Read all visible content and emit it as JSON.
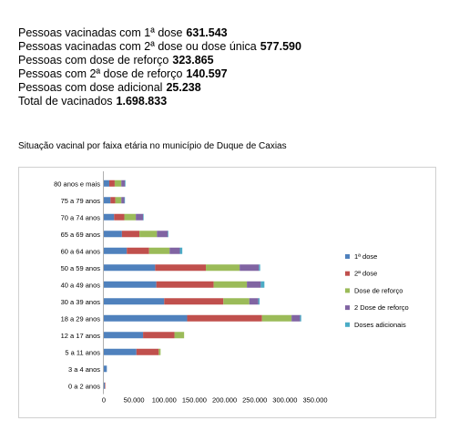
{
  "stats": [
    {
      "label": "Pessoas vacinadas com 1ª dose",
      "value": "631.543"
    },
    {
      "label": "Pessoas vacinadas com 2ª dose ou dose única",
      "value": "577.590"
    },
    {
      "label": "Pessoas com dose de reforço",
      "value": "323.865"
    },
    {
      "label": "Pessoas com 2ª dose de reforço",
      "value": "140.597"
    },
    {
      "label": " Pessoas com dose adicional",
      "value": "25.238"
    },
    {
      "label": "Total de vacinados",
      "value": "1.698.833"
    }
  ],
  "chart_data": {
    "type": "bar",
    "orientation": "horizontal",
    "stacked": true,
    "title": "Situação vacinal por faixa etária no município de Duque de Caxias",
    "categories": [
      "80 anos e mais",
      "75 a 79 anos",
      "70 a 74 anos",
      "65 a 69 anos",
      "60 a 64 anos",
      "50 a 59 anos",
      "40 a 49 anos",
      "30 a 39 anos",
      "18 a 29 anos",
      "12 a 17 anos",
      "5 a 11 anos",
      "3 a 4 anos",
      "0 a 2 anos"
    ],
    "series": [
      {
        "name": "1ª dose",
        "color": "#4F81BD",
        "values": [
          9000,
          11000,
          17000,
          30000,
          38000,
          85000,
          87000,
          100000,
          138000,
          65000,
          54000,
          5000,
          1500
        ]
      },
      {
        "name": "2ª dose",
        "color": "#C0504D",
        "values": [
          9000,
          8000,
          17000,
          29000,
          37000,
          84000,
          95000,
          98000,
          124000,
          52000,
          37000,
          0,
          500
        ]
      },
      {
        "name": "Dose de reforço",
        "color": "#9BBB59",
        "values": [
          11000,
          10000,
          19000,
          29000,
          34000,
          56000,
          55000,
          43000,
          49000,
          16000,
          3000,
          0,
          0
        ]
      },
      {
        "name": "2 Dose de reforço",
        "color": "#8064A2",
        "values": [
          6000,
          5000,
          12000,
          18000,
          17000,
          32000,
          23000,
          15000,
          14000,
          0,
          0,
          0,
          0
        ]
      },
      {
        "name": "Doses adicionais",
        "color": "#4BACC6",
        "values": [
          1000,
          1000,
          1000,
          1000,
          4000,
          2000,
          6000,
          2000,
          2000,
          0,
          0,
          0,
          0
        ]
      }
    ],
    "x_ticks": [
      "0",
      "50.000",
      "100.000",
      "150.000",
      "200.000",
      "250.000",
      "300.000",
      "350.000"
    ],
    "xlim": [
      0,
      350000
    ],
    "legend_position": "right",
    "grid": false
  }
}
